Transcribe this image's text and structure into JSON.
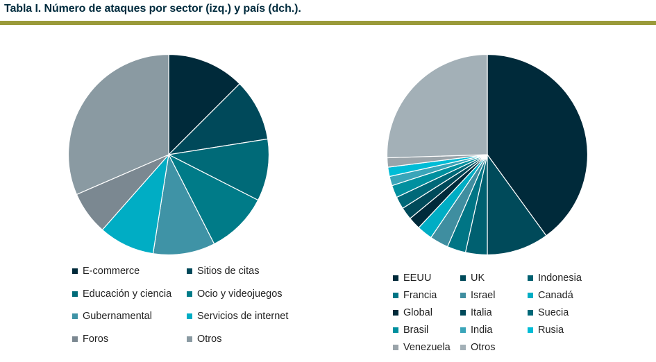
{
  "page": {
    "title": "Tabla I. Número de ataques por sector (izq.) y país (dch.).",
    "rule_color": "#9a9a3a"
  },
  "chart_data": [
    {
      "type": "pie",
      "title": "Número de ataques por sector",
      "start": "12 o'clock, clockwise",
      "labels": [
        "E-commerce",
        "Sitios de citas",
        "Educación y ciencia",
        "Ocio y videojuegos",
        "Gubernamental",
        "Servicios de internet",
        "Foros",
        "Otros"
      ],
      "values": [
        12.5,
        10,
        10,
        10,
        10,
        9,
        7,
        31.5
      ],
      "colors": [
        "#002a3a",
        "#00495a",
        "#006a78",
        "#007b88",
        "#3f93a6",
        "#00adc4",
        "#7b8891",
        "#8a9aa2"
      ]
    },
    {
      "type": "pie",
      "title": "Número de ataques por país",
      "start": "12 o'clock, clockwise",
      "labels": [
        "EEUU",
        "UK",
        "Indonesia",
        "Francia",
        "Israel",
        "Canadá",
        "Global",
        "Italia",
        "Suecia",
        "Brasil",
        "India",
        "Rusia",
        "Venezuela",
        "Otros"
      ],
      "values": [
        40,
        10,
        3.5,
        3,
        3,
        2.5,
        2,
        2,
        2,
        2,
        1.5,
        1.5,
        1.5,
        25.5
      ],
      "colors": [
        "#002a3a",
        "#004a5a",
        "#006070",
        "#007585",
        "#3f8ea0",
        "#00adc4",
        "#002a3a",
        "#004a5a",
        "#006878",
        "#00909f",
        "#3aa5b9",
        "#00bcd6",
        "#9aa4aa",
        "#a3b0b7"
      ]
    }
  ]
}
